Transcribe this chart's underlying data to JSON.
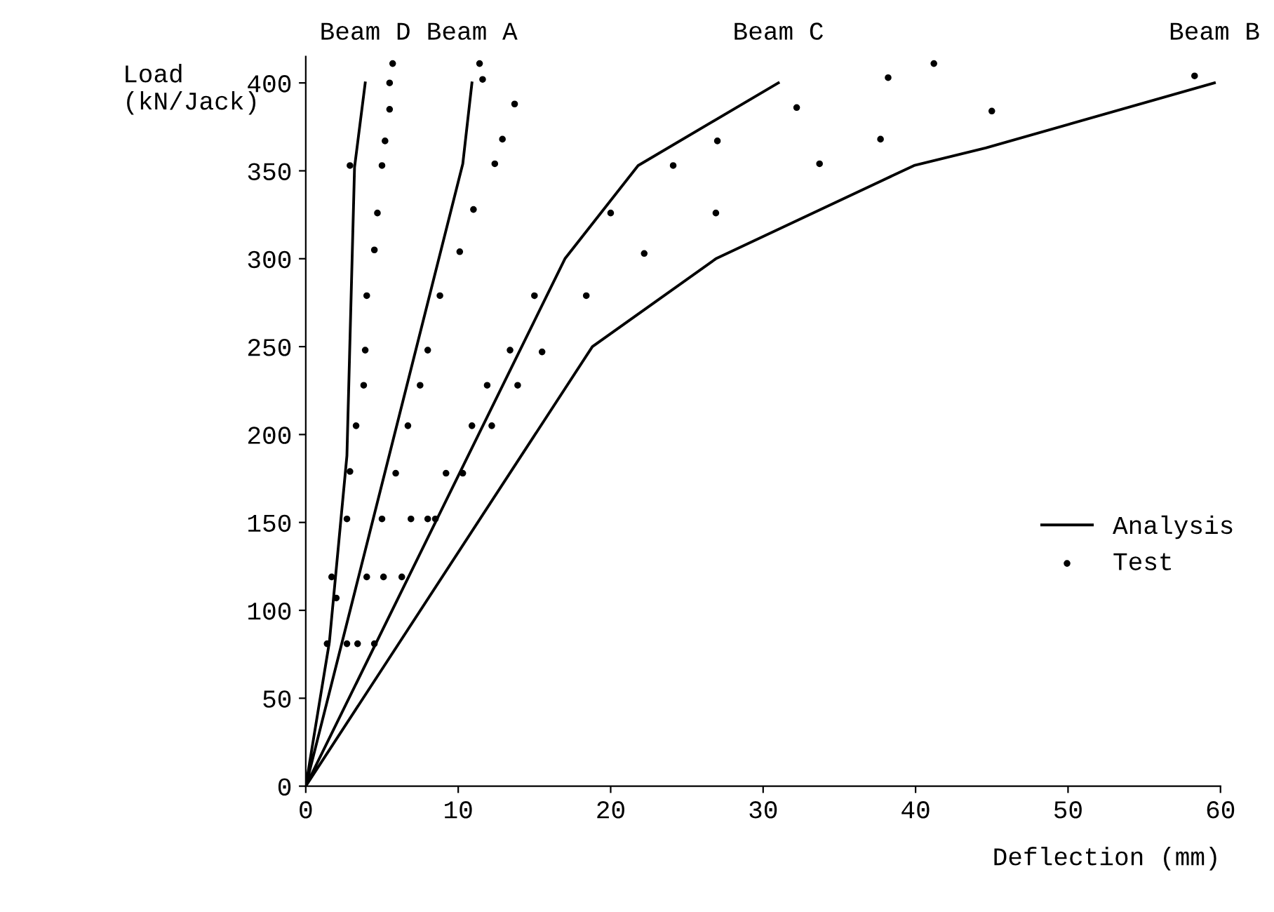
{
  "chart_data": {
    "type": "line",
    "xlabel": "Deflection (mm)",
    "ylabel": "Load\n(kN/Jack)",
    "xlim": [
      0,
      60
    ],
    "ylim": [
      0,
      415
    ],
    "xticks": [
      0,
      10,
      20,
      30,
      40,
      50,
      60
    ],
    "yticks": [
      0,
      50,
      100,
      150,
      200,
      250,
      300,
      350,
      400
    ],
    "grid": false,
    "legend": "right",
    "annotations": [
      "Beam D",
      "Beam A",
      "Beam C",
      "Beam B"
    ],
    "series": [
      {
        "name": "Analysis",
        "color": "#000000",
        "marker": "none",
        "line_style": "solid",
        "x": [
          0,
          1.55,
          2.7,
          3.2,
          3.9,
          null,
          0,
          10.3,
          10.9,
          null,
          0,
          17.0,
          21.8,
          31.0,
          null,
          0,
          18.8,
          26.9,
          39.9,
          44.6,
          59.6
        ],
        "values": [
          0,
          82,
          188,
          352,
          400,
          null,
          0,
          354,
          400,
          null,
          0,
          300,
          353,
          400,
          null,
          0,
          250,
          300,
          353,
          363,
          400
        ]
      },
      {
        "name": "Test",
        "type": "scatter",
        "color": "#000000",
        "marker": "circle",
        "x": [
          5.7,
          5.5,
          5.5,
          5.2,
          5.0,
          4.7,
          4.5,
          4.0,
          3.9,
          3.8,
          3.3,
          2.9,
          11.4,
          11.6,
          13.7,
          12.9,
          12.4,
          11.0,
          10.1,
          8.8,
          8.0,
          7.5,
          6.7,
          15.0,
          18.4,
          13.4,
          15.5,
          11.9,
          13.9,
          10.9,
          12.2,
          2.9,
          5.9,
          9.2,
          10.3,
          2.7,
          5.0,
          6.9,
          8.0,
          8.5,
          1.7,
          4.0,
          5.1,
          6.3,
          2.0,
          1.4,
          2.7,
          3.4,
          4.5,
          20.0,
          22.2,
          24.1,
          27.0,
          26.9,
          32.2,
          33.7,
          38.2,
          41.2,
          37.7,
          45.0,
          58.3
        ],
        "values": [
          411,
          400,
          385,
          367,
          353,
          326,
          305,
          279,
          248,
          228,
          205,
          353,
          411,
          402,
          388,
          368,
          354,
          328,
          304,
          279,
          248,
          228,
          205,
          279,
          279,
          248,
          247,
          228,
          228,
          205,
          205,
          179,
          178,
          178,
          178,
          152,
          152,
          152,
          152,
          152,
          119,
          119,
          119,
          119,
          107,
          81,
          81,
          81,
          81,
          326,
          303,
          353,
          367,
          326,
          386,
          354,
          403,
          411,
          368,
          384,
          404
        ]
      }
    ]
  }
}
